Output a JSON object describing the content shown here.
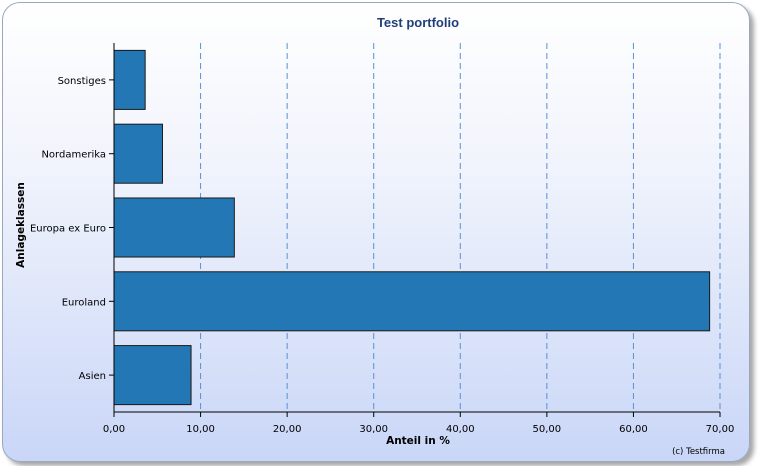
{
  "chart_data": {
    "type": "bar",
    "orientation": "horizontal",
    "title": "Test portfolio",
    "xlabel": "Anteil in %",
    "ylabel": "Anlageklassen",
    "categories": [
      "Asien",
      "Euroland",
      "Europa ex Euro",
      "Nordamerika",
      "Sonstiges"
    ],
    "values": [
      8.9,
      68.8,
      13.9,
      5.6,
      3.6
    ],
    "xlim": [
      0,
      70
    ],
    "x_ticks": [
      "0,00",
      "10,00",
      "20,00",
      "30,00",
      "40,00",
      "50,00",
      "60,00",
      "70,00"
    ],
    "grid": "vertical dashed",
    "bar_color": "#2277b4",
    "grid_color": "#5a8fd6",
    "credit": "(c) Testfirma"
  }
}
